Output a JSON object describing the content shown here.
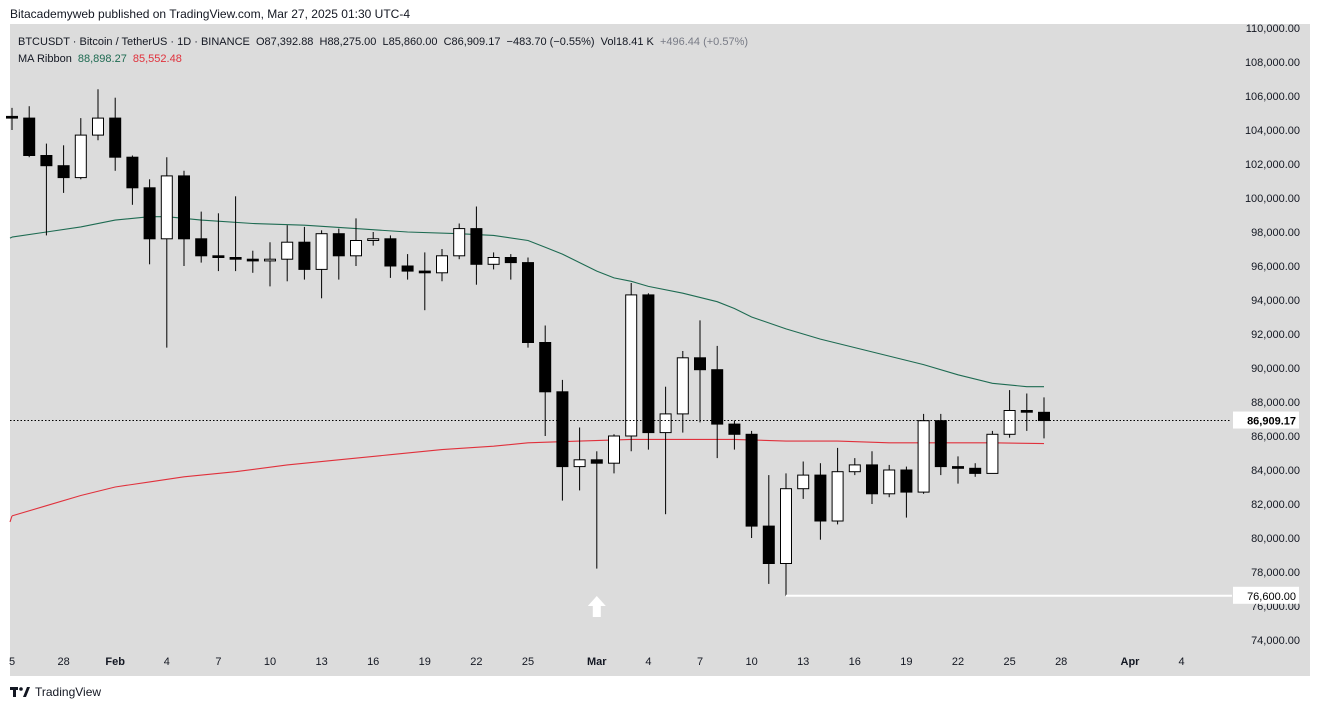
{
  "publisher_line": "Bitacademyweb published on TradingView.com, Mar 27, 2025 01:30 UTC-4",
  "legend": {
    "symbol": "BTCUSDT · Bitcoin / TetherUS · 1D · BINANCE",
    "open": "O87,392.88",
    "high": "H88,275.00",
    "low": "L85,860.00",
    "close": "C86,909.17",
    "change": "−483.70 (−0.55%)",
    "volume": "Vol18.41 K",
    "extra": "+496.44 (+0.57%)",
    "ma_name": "MA Ribbon",
    "ma1_value": "88,898.27",
    "ma2_value": "85,552.48"
  },
  "footer": {
    "brand": "TradingView"
  },
  "colors": {
    "background": "#dcdcdc",
    "bull_fill": "#ffffff",
    "bear_fill": "#000000",
    "ma_green": "#1e6b52",
    "ma_red": "#e0313c",
    "support_line": "#ffffff"
  },
  "chart_data": {
    "type": "candlestick",
    "symbol": "BTCUSDT",
    "timeframe": "1D",
    "ylim": [
      73000,
      110000
    ],
    "y_ticks": [
      74000,
      76000,
      78000,
      80000,
      82000,
      84000,
      86000,
      88000,
      90000,
      92000,
      94000,
      96000,
      98000,
      100000,
      102000,
      104000,
      106000,
      108000,
      110000
    ],
    "x_tick_labels": [
      {
        "day": -1,
        "label": "5"
      },
      {
        "day": 2,
        "label": "28"
      },
      {
        "day": 5,
        "label": "Feb"
      },
      {
        "day": 8,
        "label": "4"
      },
      {
        "day": 11,
        "label": "7"
      },
      {
        "day": 14,
        "label": "10"
      },
      {
        "day": 17,
        "label": "13"
      },
      {
        "day": 20,
        "label": "16"
      },
      {
        "day": 23,
        "label": "19"
      },
      {
        "day": 26,
        "label": "22"
      },
      {
        "day": 29,
        "label": "25"
      },
      {
        "day": 33,
        "label": "Mar"
      },
      {
        "day": 36,
        "label": "4"
      },
      {
        "day": 39,
        "label": "7"
      },
      {
        "day": 42,
        "label": "10"
      },
      {
        "day": 45,
        "label": "13"
      },
      {
        "day": 48,
        "label": "16"
      },
      {
        "day": 51,
        "label": "19"
      },
      {
        "day": 54,
        "label": "22"
      },
      {
        "day": 57,
        "label": "25"
      },
      {
        "day": 60,
        "label": "28"
      },
      {
        "day": 64,
        "label": "Apr"
      },
      {
        "day": 67,
        "label": "4"
      }
    ],
    "candles": [
      {
        "d": -1,
        "o": 104800,
        "h": 105300,
        "l": 104000,
        "c": 104700
      },
      {
        "d": 0,
        "o": 104700,
        "h": 105400,
        "l": 102400,
        "c": 102500
      },
      {
        "d": 1,
        "o": 102500,
        "h": 103200,
        "l": 97800,
        "c": 101900
      },
      {
        "d": 2,
        "o": 101900,
        "h": 103100,
        "l": 100300,
        "c": 101200
      },
      {
        "d": 3,
        "o": 101200,
        "h": 104700,
        "l": 101100,
        "c": 103700
      },
      {
        "d": 4,
        "o": 103700,
        "h": 106400,
        "l": 103400,
        "c": 104700
      },
      {
        "d": 5,
        "o": 104700,
        "h": 105900,
        "l": 101600,
        "c": 102400
      },
      {
        "d": 6,
        "o": 102400,
        "h": 102500,
        "l": 99600,
        "c": 100600
      },
      {
        "d": 7,
        "o": 100600,
        "h": 101100,
        "l": 96100,
        "c": 97600
      },
      {
        "d": 8,
        "o": 97600,
        "h": 102400,
        "l": 91200,
        "c": 101300
      },
      {
        "d": 9,
        "o": 101300,
        "h": 101600,
        "l": 96000,
        "c": 97600
      },
      {
        "d": 10,
        "o": 97600,
        "h": 99200,
        "l": 96200,
        "c": 96600
      },
      {
        "d": 11,
        "o": 96600,
        "h": 99100,
        "l": 95700,
        "c": 96500
      },
      {
        "d": 12,
        "o": 96500,
        "h": 100100,
        "l": 95700,
        "c": 96400
      },
      {
        "d": 13,
        "o": 96400,
        "h": 96900,
        "l": 95600,
        "c": 96300
      },
      {
        "d": 14,
        "o": 96300,
        "h": 97400,
        "l": 94800,
        "c": 96400
      },
      {
        "d": 15,
        "o": 96400,
        "h": 98400,
        "l": 95100,
        "c": 97400
      },
      {
        "d": 16,
        "o": 97400,
        "h": 98300,
        "l": 95200,
        "c": 95800
      },
      {
        "d": 17,
        "o": 95800,
        "h": 98100,
        "l": 94100,
        "c": 97900
      },
      {
        "d": 18,
        "o": 97900,
        "h": 98200,
        "l": 95200,
        "c": 96600
      },
      {
        "d": 19,
        "o": 96600,
        "h": 98800,
        "l": 96000,
        "c": 97500
      },
      {
        "d": 20,
        "o": 97500,
        "h": 98000,
        "l": 97200,
        "c": 97600
      },
      {
        "d": 21,
        "o": 97600,
        "h": 97800,
        "l": 95300,
        "c": 96000
      },
      {
        "d": 22,
        "o": 96000,
        "h": 96700,
        "l": 95200,
        "c": 95700
      },
      {
        "d": 23,
        "o": 95700,
        "h": 96800,
        "l": 93400,
        "c": 95600
      },
      {
        "d": 24,
        "o": 95600,
        "h": 97000,
        "l": 95100,
        "c": 96600
      },
      {
        "d": 25,
        "o": 96600,
        "h": 98500,
        "l": 96400,
        "c": 98200
      },
      {
        "d": 26,
        "o": 98200,
        "h": 99500,
        "l": 94900,
        "c": 96100
      },
      {
        "d": 27,
        "o": 96100,
        "h": 96800,
        "l": 95800,
        "c": 96500
      },
      {
        "d": 28,
        "o": 96500,
        "h": 96700,
        "l": 95200,
        "c": 96200
      },
      {
        "d": 29,
        "o": 96200,
        "h": 96500,
        "l": 91200,
        "c": 91500
      },
      {
        "d": 30,
        "o": 91500,
        "h": 92500,
        "l": 86000,
        "c": 88600
      },
      {
        "d": 31,
        "o": 88600,
        "h": 89300,
        "l": 82200,
        "c": 84200
      },
      {
        "d": 32,
        "o": 84200,
        "h": 86500,
        "l": 82800,
        "c": 84600
      },
      {
        "d": 33,
        "o": 84600,
        "h": 85100,
        "l": 78200,
        "c": 84400
      },
      {
        "d": 34,
        "o": 84400,
        "h": 86100,
        "l": 83800,
        "c": 86000
      },
      {
        "d": 35,
        "o": 86000,
        "h": 95000,
        "l": 85100,
        "c": 94300
      },
      {
        "d": 36,
        "o": 94300,
        "h": 94400,
        "l": 85200,
        "c": 86200
      },
      {
        "d": 37,
        "o": 86200,
        "h": 88900,
        "l": 81400,
        "c": 87300
      },
      {
        "d": 38,
        "o": 87300,
        "h": 91000,
        "l": 86200,
        "c": 90600
      },
      {
        "d": 39,
        "o": 90600,
        "h": 92800,
        "l": 86800,
        "c": 89900
      },
      {
        "d": 40,
        "o": 89900,
        "h": 91300,
        "l": 84700,
        "c": 86700
      },
      {
        "d": 41,
        "o": 86700,
        "h": 86900,
        "l": 85200,
        "c": 86100
      },
      {
        "d": 42,
        "o": 86100,
        "h": 86300,
        "l": 80000,
        "c": 80700
      },
      {
        "d": 43,
        "o": 80700,
        "h": 83700,
        "l": 77300,
        "c": 78500
      },
      {
        "d": 44,
        "o": 78500,
        "h": 83800,
        "l": 76600,
        "c": 82900
      },
      {
        "d": 45,
        "o": 82900,
        "h": 84500,
        "l": 82300,
        "c": 83700
      },
      {
        "d": 46,
        "o": 83700,
        "h": 84400,
        "l": 79900,
        "c": 81000
      },
      {
        "d": 47,
        "o": 81000,
        "h": 85300,
        "l": 80800,
        "c": 83900
      },
      {
        "d": 48,
        "o": 83900,
        "h": 84700,
        "l": 83700,
        "c": 84300
      },
      {
        "d": 49,
        "o": 84300,
        "h": 85100,
        "l": 82000,
        "c": 82600
      },
      {
        "d": 50,
        "o": 82600,
        "h": 84300,
        "l": 82400,
        "c": 84000
      },
      {
        "d": 51,
        "o": 84000,
        "h": 84200,
        "l": 81200,
        "c": 82700
      },
      {
        "d": 52,
        "o": 82700,
        "h": 87300,
        "l": 82600,
        "c": 86900
      },
      {
        "d": 53,
        "o": 86900,
        "h": 87300,
        "l": 83700,
        "c": 84200
      },
      {
        "d": 54,
        "o": 84200,
        "h": 84800,
        "l": 83200,
        "c": 84100
      },
      {
        "d": 55,
        "o": 84100,
        "h": 84400,
        "l": 83600,
        "c": 83800
      },
      {
        "d": 56,
        "o": 83800,
        "h": 86300,
        "l": 83800,
        "c": 86100
      },
      {
        "d": 57,
        "o": 86100,
        "h": 88700,
        "l": 85900,
        "c": 87500
      },
      {
        "d": 58,
        "o": 87500,
        "h": 88500,
        "l": 86300,
        "c": 87400
      },
      {
        "d": 59,
        "o": 87392.88,
        "h": 88275,
        "l": 85860,
        "c": 86909.17
      }
    ],
    "series": [
      {
        "name": "MA Ribbon",
        "values": [
          [
            -1,
            97700
          ],
          [
            1,
            98000
          ],
          [
            3,
            98300
          ],
          [
            5,
            98700
          ],
          [
            7,
            98900
          ],
          [
            8,
            98900
          ],
          [
            10,
            98700
          ],
          [
            13,
            98500
          ],
          [
            16,
            98400
          ],
          [
            19,
            98200
          ],
          [
            22,
            98000
          ],
          [
            25,
            97900
          ],
          [
            27,
            97800
          ],
          [
            29,
            97500
          ],
          [
            30,
            97100
          ],
          [
            31,
            96700
          ],
          [
            32,
            96200
          ],
          [
            33,
            95700
          ],
          [
            34,
            95300
          ],
          [
            35,
            95100
          ],
          [
            36,
            94800
          ],
          [
            38,
            94400
          ],
          [
            40,
            93900
          ],
          [
            41,
            93500
          ],
          [
            42,
            93000
          ],
          [
            44,
            92300
          ],
          [
            46,
            91700
          ],
          [
            48,
            91200
          ],
          [
            50,
            90700
          ],
          [
            52,
            90200
          ],
          [
            54,
            89600
          ],
          [
            56,
            89100
          ],
          [
            58,
            88900
          ],
          [
            59,
            88898.27
          ]
        ]
      },
      {
        "name": "MA Ribbon",
        "values": [
          [
            -1,
            81300
          ],
          [
            1,
            81900
          ],
          [
            3,
            82500
          ],
          [
            5,
            83000
          ],
          [
            7,
            83300
          ],
          [
            9,
            83600
          ],
          [
            12,
            83900
          ],
          [
            15,
            84300
          ],
          [
            18,
            84600
          ],
          [
            21,
            84900
          ],
          [
            24,
            85200
          ],
          [
            27,
            85400
          ],
          [
            29,
            85600
          ],
          [
            32,
            85700
          ],
          [
            35,
            85800
          ],
          [
            38,
            85800
          ],
          [
            41,
            85800
          ],
          [
            44,
            85700
          ],
          [
            47,
            85700
          ],
          [
            50,
            85600
          ],
          [
            53,
            85600
          ],
          [
            56,
            85600
          ],
          [
            59,
            85552.48
          ]
        ]
      }
    ],
    "last_price": 86909.17,
    "last_price_label": "86,909.17",
    "support": {
      "value": 76600,
      "label": "76,600.00",
      "start_day": 44
    },
    "arrow": {
      "day": 33,
      "direction": "up"
    },
    "grid": false
  }
}
